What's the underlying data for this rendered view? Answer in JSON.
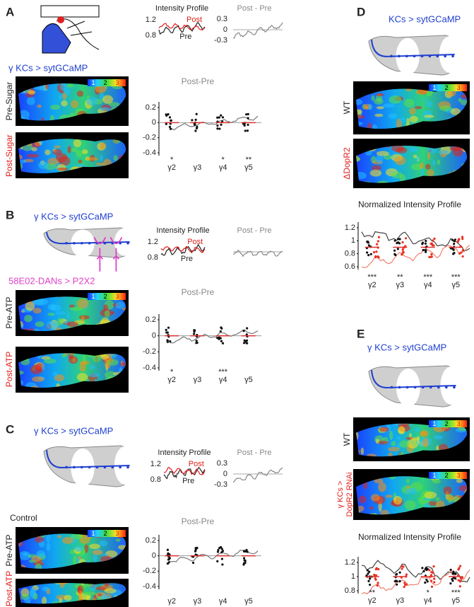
{
  "panel_a": {
    "letter": "A",
    "profile_title": "Intensity Profile",
    "profile_post": "Post",
    "profile_pre": "Pre",
    "profile_ticks": [
      1.2,
      0.8
    ],
    "diff_title": "Post - Pre",
    "diff_ticks": [
      0.3,
      0,
      -0.3
    ],
    "genotype": "γ KCs > sytGCaMP",
    "colorbar": [
      1,
      2,
      3
    ],
    "image_labels": [
      "Pre-Sugar",
      "Post-Sugar"
    ],
    "plot_title": "Post-Pre",
    "yticks": [
      0.2,
      0,
      -0.2,
      -0.4
    ],
    "categories": [
      "γ2",
      "γ3",
      "γ4",
      "γ5"
    ],
    "significance": [
      "*",
      null,
      "*",
      "**"
    ]
  },
  "panel_b": {
    "letter": "B",
    "genotype": "γ KCs > sytGCaMP",
    "profile_title": "Intensity Profile",
    "profile_post": "Post",
    "profile_pre": "Pre",
    "profile_ticks": [
      1.2,
      0.8
    ],
    "diff_title": "Post - Pre",
    "driver": "58E02-DANs > P2X2",
    "colorbar": [
      1,
      2,
      3
    ],
    "image_labels": [
      "Pre-ATP",
      "Post-ATP"
    ],
    "plot_title": "Post-Pre",
    "yticks": [
      0.2,
      0,
      -0.2,
      -0.4
    ],
    "categories": [
      "γ2",
      "γ3",
      "γ4",
      "γ5"
    ],
    "significance": [
      "*",
      null,
      "***",
      null
    ]
  },
  "panel_c": {
    "letter": "C",
    "genotype": "γ KCs > sytGCaMP",
    "profile_title": "Intensity Profile",
    "profile_post": "Post",
    "profile_pre": "Pre",
    "profile_ticks": [
      1.2,
      0.8
    ],
    "diff_title": "Post - Pre",
    "diff_ticks": [
      0.3,
      0,
      -0.3
    ],
    "condition": "Control",
    "colorbar": [
      1,
      2,
      3
    ],
    "image_labels": [
      "Pre-ATP",
      "Post-ATP"
    ],
    "plot_title": "Post-Pre",
    "yticks": [
      0.2,
      0,
      -0.2,
      -0.4
    ],
    "categories": [
      "γ2",
      "γ3",
      "γ4",
      "γ5"
    ]
  },
  "panel_d": {
    "letter": "D",
    "genotype": "KCs > sytGCaMP",
    "colorbar": [
      1,
      2,
      3
    ],
    "image_labels": [
      "WT",
      "ΔDopR2"
    ],
    "plot_title": "Normalized Intensity Profile",
    "yticks": [
      1.2,
      1,
      0.8,
      0.6
    ],
    "categories": [
      "γ2",
      "γ3",
      "γ4",
      "γ5"
    ],
    "significance": [
      "***",
      "**",
      "***",
      "***"
    ]
  },
  "panel_e": {
    "letter": "E",
    "genotype": "γ KCs > sytGCaMP",
    "colorbars": [
      [
        1,
        2,
        3
      ],
      [
        1,
        2,
        3
      ]
    ],
    "image_labels": [
      "WT",
      "γ KCs >",
      "DopR2 RNAi"
    ],
    "plot_title": "Normalized Intensity Profile",
    "yticks": [
      1.2,
      1,
      0.8
    ],
    "categories": [
      "γ2",
      "γ3",
      "γ4",
      "γ5"
    ],
    "significance": [
      "**",
      null,
      "*",
      "***"
    ]
  }
}
